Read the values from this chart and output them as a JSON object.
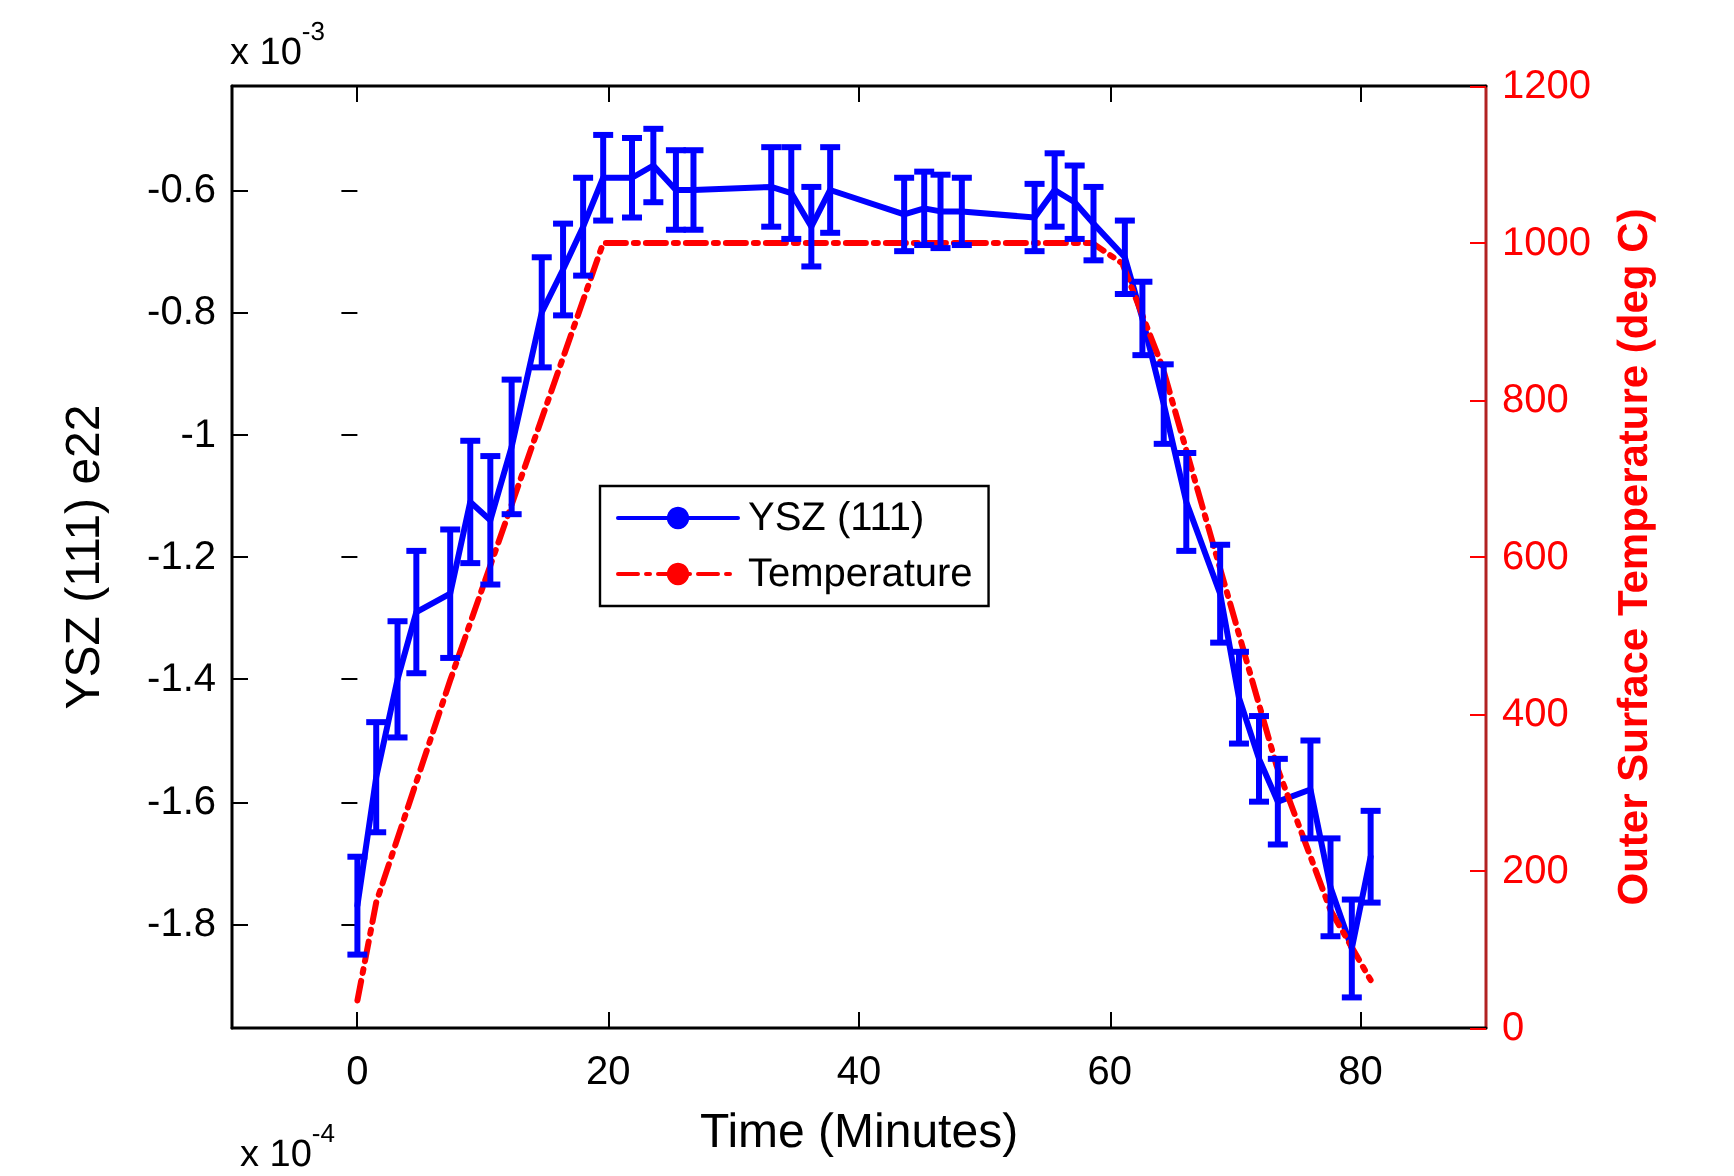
{
  "chart_data": {
    "type": "line",
    "xlabel": "Time (Minutes)",
    "ylabel": "YSZ (111) e22",
    "y2label": "Outer Surface Temperature (deg C)",
    "annotations": [
      "x 10$^{-3}$",
      "x 10$^{-4}$"
    ],
    "xlim": [
      -10,
      90
    ],
    "xticks": [
      0,
      20,
      40,
      60,
      80
    ],
    "ylim": [
      -1.97,
      -0.43
    ],
    "yticks": [
      -1.8,
      -1.6,
      -1.4,
      -1.2,
      -1,
      -0.8,
      -0.6
    ],
    "y2lim": [
      0,
      1200
    ],
    "y2ticks": [
      0,
      200,
      400,
      600,
      800,
      1000,
      1200
    ],
    "grid": false,
    "legend": "center",
    "marker": "none",
    "series": [
      {
        "name": "YSZ (111)",
        "color": "#0000ff",
        "line_style": "solid",
        "x": [
          0,
          1.5,
          3.2,
          4.7,
          7.4,
          9.0,
          10.6,
          12.3,
          14.7,
          16.4,
          18.0,
          19.6,
          21.9,
          23.6,
          25.4,
          26.8,
          33.0,
          34.6,
          36.2,
          37.7,
          43.6,
          45.2,
          46.5,
          48.2,
          54.0,
          55.6,
          57.2,
          58.7,
          61.2,
          62.6,
          64.3,
          66.1,
          68.8,
          70.3,
          71.9,
          73.4,
          76.0,
          77.6,
          79.3,
          80.8
        ],
        "values": [
          -1.77,
          -1.56,
          -1.4,
          -1.29,
          -1.26,
          -1.11,
          -1.14,
          -1.02,
          -0.8,
          -0.73,
          -0.66,
          -0.58,
          -0.58,
          -0.56,
          -0.6,
          -0.6,
          -0.595,
          -0.605,
          -0.66,
          -0.6,
          -0.64,
          -0.63,
          -0.635,
          -0.635,
          -0.645,
          -0.6,
          -0.62,
          -0.655,
          -0.71,
          -0.81,
          -0.95,
          -1.11,
          -1.26,
          -1.43,
          -1.53,
          -1.6,
          -1.58,
          -1.74,
          -1.84,
          -1.69
        ],
        "errors": [
          0.08,
          0.09,
          0.095,
          0.1,
          0.105,
          0.1,
          0.105,
          0.11,
          0.09,
          0.075,
          0.08,
          0.07,
          0.065,
          0.06,
          0.065,
          0.065,
          0.065,
          0.075,
          0.065,
          0.07,
          0.06,
          0.06,
          0.06,
          0.055,
          0.055,
          0.06,
          0.06,
          0.06,
          0.06,
          0.06,
          0.065,
          0.08,
          0.08,
          0.075,
          0.07,
          0.07,
          0.08,
          0.08,
          0.08,
          0.075
        ]
      },
      {
        "name": "Temperature",
        "color": "#ff0000",
        "line_style": "dashdot",
        "axis": "y2",
        "x": [
          0,
          1.5,
          7.4,
          19.6,
          58.6,
          61.0,
          64.2,
          73.3,
          77.6,
          80.8
        ],
        "values": [
          35,
          160,
          443,
          1000,
          1000,
          974,
          842,
          334,
          150,
          61
        ]
      }
    ]
  }
}
